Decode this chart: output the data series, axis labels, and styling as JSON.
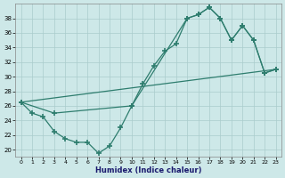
{
  "xlabel": "Humidex (Indice chaleur)",
  "bg_color": "#cde8e8",
  "line_color": "#2e7d6e",
  "grid_color": "#aacccc",
  "xlim": [
    -0.5,
    23.5
  ],
  "ylim": [
    19,
    40
  ],
  "yticks": [
    20,
    22,
    24,
    26,
    28,
    30,
    32,
    34,
    36,
    38
  ],
  "xticks": [
    0,
    1,
    2,
    3,
    4,
    5,
    6,
    7,
    8,
    9,
    10,
    11,
    12,
    13,
    14,
    15,
    16,
    17,
    18,
    19,
    20,
    21,
    22,
    23
  ],
  "line1_x": [
    0,
    1,
    2,
    3,
    4,
    5,
    6,
    7,
    8,
    9,
    10,
    11,
    12,
    13,
    14,
    15,
    16,
    17,
    18,
    19,
    20,
    21,
    22,
    23
  ],
  "line1_y": [
    26.5,
    25.0,
    24.5,
    22.5,
    21.5,
    21.0,
    21.0,
    19.5,
    20.5,
    23.0,
    26.0,
    29.0,
    31.5,
    33.5,
    34.5,
    38.0,
    38.5,
    39.5,
    38.0,
    35.0,
    37.0,
    35.0,
    30.5,
    31.0
  ],
  "line2_x": [
    0,
    3,
    10,
    15,
    16,
    17,
    18,
    19,
    20,
    21,
    22,
    23
  ],
  "line2_y": [
    26.5,
    25.0,
    26.0,
    38.0,
    38.5,
    39.5,
    38.0,
    35.0,
    37.0,
    35.0,
    30.5,
    31.0
  ],
  "line3_x": [
    0,
    23
  ],
  "line3_y": [
    26.5,
    31.0
  ]
}
